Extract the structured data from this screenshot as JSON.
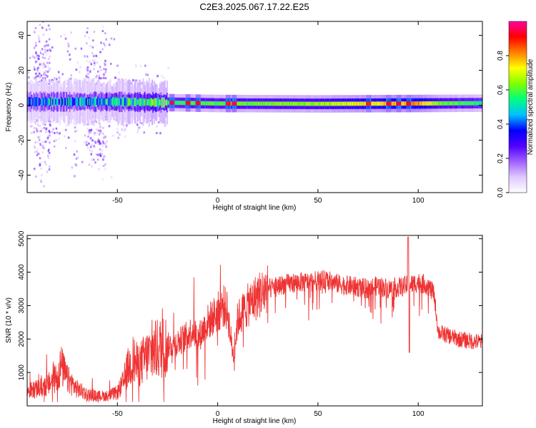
{
  "title": "C2E3.2025.067.17.22.E25",
  "chart_data": [
    {
      "type": "heatmap",
      "xlabel": "Height of straight line (km)",
      "ylabel": "Frequency (Hz)",
      "xlim": [
        -95,
        132
      ],
      "ylim": [
        -50,
        48
      ],
      "xticks": [
        -50,
        0,
        50,
        100
      ],
      "yticks": [
        -40,
        -20,
        0,
        20,
        40
      ],
      "colorbar": {
        "label": "Normalized spectral amplitude",
        "range": [
          0,
          1
        ],
        "ticks": [
          "0.0",
          "0.2",
          "0.4",
          "0.6",
          "0.8"
        ],
        "tick_values": [
          0.0,
          0.2,
          0.4,
          0.6,
          0.8
        ],
        "colors": [
          "#ffffff",
          "#e0c8ff",
          "#a060ff",
          "#5000ff",
          "#0000ff",
          "#00c0ff",
          "#00ff80",
          "#80ff00",
          "#ffff00",
          "#ff8000",
          "#ff0000",
          "#ff00a0"
        ]
      },
      "band": {
        "center_hz": [
          [
            -95,
            2.0
          ],
          [
            -50,
            2.0
          ],
          [
            -25,
            1.5
          ],
          [
            0,
            1.0
          ],
          [
            50,
            0.8
          ],
          [
            100,
            1.0
          ],
          [
            132,
            1.2
          ]
        ],
        "core_amplitude": [
          [
            -95,
            0.35
          ],
          [
            -70,
            0.4
          ],
          [
            -50,
            0.42
          ],
          [
            -25,
            0.55
          ],
          [
            0,
            0.6
          ],
          [
            50,
            0.65
          ],
          [
            80,
            0.75
          ],
          [
            100,
            0.8
          ],
          [
            110,
            0.62
          ],
          [
            132,
            0.55
          ]
        ],
        "hotspots_km": [
          -23,
          -15,
          -10,
          5,
          8,
          75,
          85,
          90,
          95
        ]
      }
    },
    {
      "type": "line",
      "xlabel": "Height of straight line (km)",
      "ylabel": "SNR (10 * v/v)",
      "xlim": [
        -95,
        132
      ],
      "ylim": [
        0,
        5100
      ],
      "xticks": [
        -50,
        0,
        50,
        100
      ],
      "yticks": [
        1000,
        2000,
        3000,
        4000,
        5000
      ],
      "color": "#ee3333",
      "series": [
        {
          "x": [
            -95,
            -90,
            -85,
            -80,
            -78,
            -75,
            -70,
            -65,
            -60,
            -55,
            -50,
            -47,
            -45,
            -42,
            -40,
            -38,
            -35,
            -30,
            -25,
            -20,
            -15,
            -12,
            -10,
            -5,
            0,
            3,
            5,
            7,
            8,
            10,
            15,
            20,
            25,
            30,
            35,
            40,
            45,
            50,
            55,
            60,
            65,
            70,
            75,
            80,
            85,
            90,
            95,
            100,
            105,
            108,
            110,
            115,
            120,
            125,
            132
          ],
          "y": [
            450,
            500,
            600,
            900,
            1200,
            800,
            500,
            350,
            300,
            300,
            400,
            700,
            1100,
            1400,
            1200,
            1300,
            1500,
            1700,
            1800,
            1900,
            2100,
            2300,
            2000,
            2500,
            2800,
            3000,
            2800,
            1800,
            1500,
            2600,
            3000,
            3300,
            3500,
            3600,
            3650,
            3700,
            3700,
            3750,
            3750,
            3650,
            3600,
            3550,
            3500,
            3600,
            3500,
            3550,
            3600,
            3700,
            3600,
            3300,
            2200,
            2100,
            2000,
            1950,
            1900
          ]
        }
      ]
    }
  ]
}
